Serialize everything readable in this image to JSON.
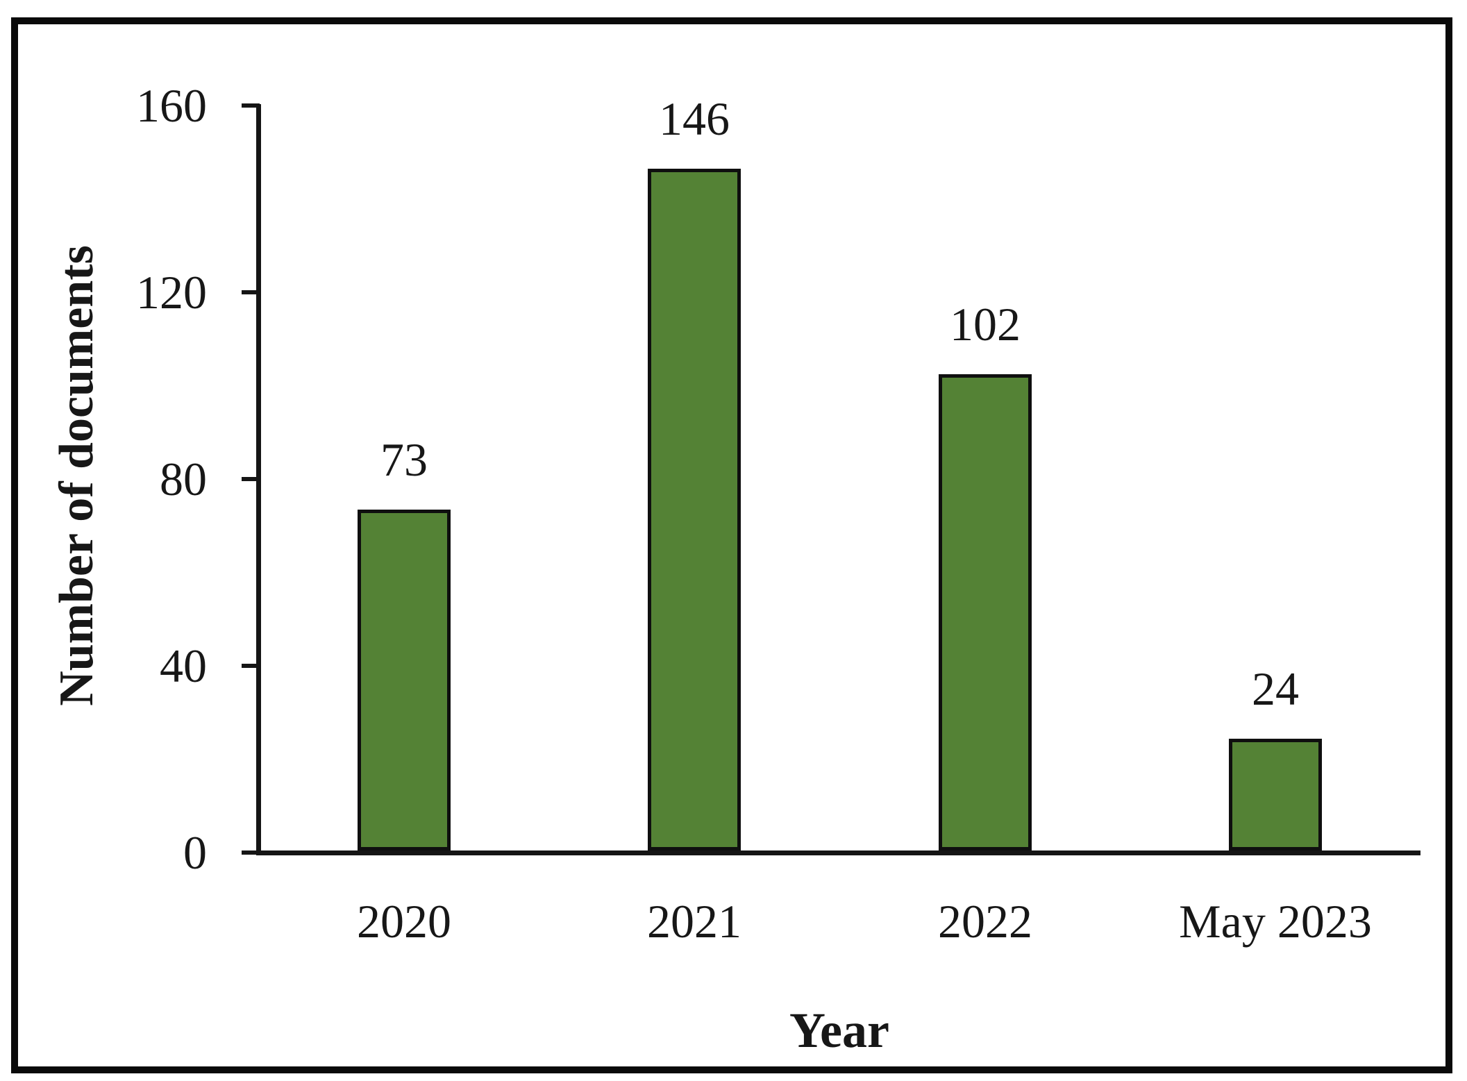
{
  "chart_data": {
    "type": "bar",
    "title": "",
    "xlabel": "Year",
    "ylabel": "Number of documents",
    "categories": [
      "2020",
      "2021",
      "2022",
      "May 2023"
    ],
    "values": [
      73,
      146,
      102,
      24
    ],
    "data_labels": [
      "73",
      "146",
      "102",
      "24"
    ],
    "ylim": [
      0,
      160
    ],
    "yticks": [
      0,
      40,
      80,
      120,
      160
    ],
    "grid": false,
    "legend_position": "none",
    "colors": {
      "bar_fill": "#548235",
      "bar_border": "#0f0f0f",
      "axis": "#151515",
      "text": "#171717",
      "frame_border": "#0a0a0a",
      "background": "#ffffff"
    }
  }
}
